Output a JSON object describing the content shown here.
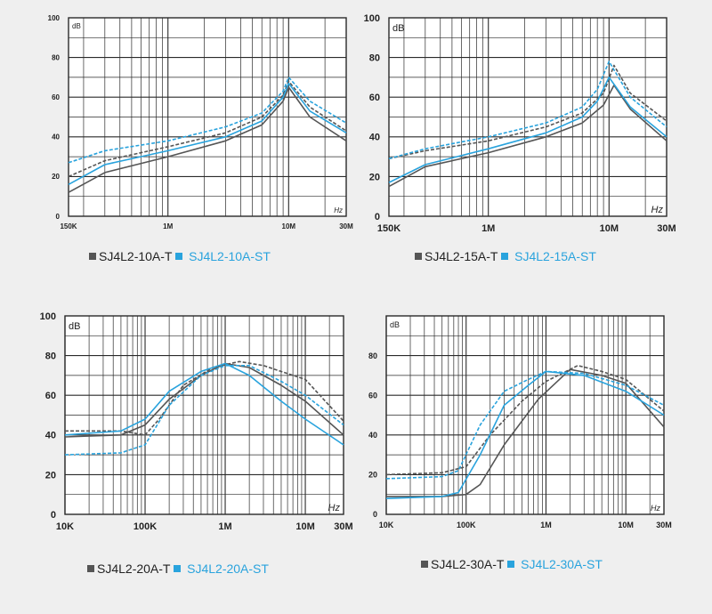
{
  "colors": {
    "background": "#efefef",
    "plot_bg": "#ffffff",
    "grid": "#2a2a2a",
    "series_gray": "#555555",
    "series_blue": "#29a3dd"
  },
  "chart_data": [
    {
      "type": "line",
      "x_scale": "log",
      "xlim": [
        150000,
        30000000
      ],
      "ylim": [
        0,
        100
      ],
      "yticks": [
        0,
        20,
        40,
        60,
        80,
        100
      ],
      "ytick_labels": [
        "0",
        "20",
        "40",
        "60",
        "80",
        "100"
      ],
      "xtick_values": [
        150000,
        1000000,
        10000000,
        30000000
      ],
      "xtick_labels": [
        "150K",
        "1M",
        "10M",
        "30M"
      ],
      "ylabel": "dB",
      "xlabel": "Hz",
      "grid": true,
      "legend": {
        "labels": [
          "SJ4L2-10A-T",
          "SJ4L2-10A-ST"
        ],
        "colors": [
          "#555555",
          "#29a3dd"
        ]
      },
      "series": [
        {
          "name": "SJ4L2-10A-T",
          "color": "#555555",
          "dash": false,
          "x": [
            150000,
            300000,
            1000000,
            3000000,
            6000000,
            9000000,
            10000000,
            15000000,
            30000000
          ],
          "y": [
            12,
            22,
            30,
            38,
            46,
            58,
            65,
            50,
            38
          ]
        },
        {
          "name": "SJ4L2-10A-T",
          "color": "#555555",
          "dash": true,
          "x": [
            150000,
            300000,
            1000000,
            3000000,
            6000000,
            9000000,
            10000000,
            15000000,
            30000000
          ],
          "y": [
            20,
            28,
            35,
            42,
            50,
            61,
            68,
            55,
            43
          ]
        },
        {
          "name": "SJ4L2-10A-ST",
          "color": "#29a3dd",
          "dash": false,
          "x": [
            150000,
            300000,
            1000000,
            3000000,
            6000000,
            9000000,
            10000000,
            15000000,
            30000000
          ],
          "y": [
            16,
            26,
            33,
            40,
            48,
            60,
            67,
            53,
            42
          ]
        },
        {
          "name": "SJ4L2-10A-ST",
          "color": "#29a3dd",
          "dash": true,
          "x": [
            150000,
            300000,
            1000000,
            3000000,
            6000000,
            9000000,
            10000000,
            15000000,
            30000000
          ],
          "y": [
            27,
            33,
            38,
            45,
            52,
            63,
            70,
            58,
            47
          ]
        }
      ]
    },
    {
      "type": "line",
      "x_scale": "log",
      "xlim": [
        150000,
        30000000
      ],
      "ylim": [
        0,
        100
      ],
      "yticks": [
        0,
        20,
        40,
        60,
        80,
        100
      ],
      "ytick_labels": [
        "0",
        "20",
        "40",
        "60",
        "80",
        "100"
      ],
      "xtick_values": [
        150000,
        1000000,
        10000000,
        30000000
      ],
      "xtick_labels": [
        "150K",
        "1M",
        "10M",
        "30M"
      ],
      "ylabel": "dB",
      "xlabel": "Hz",
      "grid": true,
      "legend": {
        "labels": [
          "SJ4L2-15A-T",
          "SJ4L2-15A-ST"
        ],
        "colors": [
          "#555555",
          "#29a3dd"
        ]
      },
      "series": [
        {
          "name": "SJ4L2-15A-T",
          "color": "#555555",
          "dash": false,
          "x": [
            150000,
            300000,
            1000000,
            3000000,
            6000000,
            9000000,
            11000000,
            15000000,
            30000000
          ],
          "y": [
            15,
            25,
            32,
            40,
            47,
            56,
            66,
            54,
            38
          ]
        },
        {
          "name": "SJ4L2-15A-T",
          "color": "#555555",
          "dash": true,
          "x": [
            150000,
            300000,
            1000000,
            3000000,
            6000000,
            9000000,
            11000000,
            15000000,
            30000000
          ],
          "y": [
            29,
            33,
            38,
            45,
            52,
            62,
            76,
            62,
            48
          ]
        },
        {
          "name": "SJ4L2-15A-ST",
          "color": "#29a3dd",
          "dash": false,
          "x": [
            150000,
            300000,
            1000000,
            3000000,
            6000000,
            8000000,
            10000000,
            15000000,
            30000000
          ],
          "y": [
            17,
            26,
            34,
            42,
            50,
            58,
            70,
            55,
            40
          ]
        },
        {
          "name": "SJ4L2-15A-ST",
          "color": "#29a3dd",
          "dash": true,
          "x": [
            150000,
            300000,
            1000000,
            3000000,
            6000000,
            8000000,
            10000000,
            15000000,
            30000000
          ],
          "y": [
            29,
            34,
            40,
            47,
            55,
            64,
            78,
            60,
            45
          ]
        }
      ]
    },
    {
      "type": "line",
      "x_scale": "log",
      "xlim": [
        10000,
        30000000
      ],
      "ylim": [
        0,
        100
      ],
      "yticks": [
        0,
        20,
        40,
        60,
        80,
        100
      ],
      "ytick_labels": [
        "0",
        "20",
        "40",
        "60",
        "80",
        "100"
      ],
      "xtick_values": [
        10000,
        100000,
        1000000,
        10000000,
        30000000
      ],
      "xtick_labels": [
        "10K",
        "100K",
        "1M",
        "10M",
        "30M"
      ],
      "ylabel": "dB",
      "xlabel": "Hz",
      "grid": true,
      "legend": {
        "labels": [
          "SJ4L2-20A-T",
          "SJ4L2-20A-ST"
        ],
        "colors": [
          "#555555",
          "#29a3dd"
        ]
      },
      "series": [
        {
          "name": "SJ4L2-20A-T",
          "color": "#555555",
          "dash": false,
          "x": [
            10000,
            50000,
            100000,
            200000,
            500000,
            1000000,
            2000000,
            5000000,
            10000000,
            30000000
          ],
          "y": [
            39,
            40,
            45,
            58,
            70,
            76,
            74,
            65,
            57,
            40
          ]
        },
        {
          "name": "SJ4L2-20A-T",
          "color": "#555555",
          "dash": true,
          "x": [
            10000,
            50000,
            100000,
            150000,
            300000,
            700000,
            1500000,
            3000000,
            10000000,
            30000000
          ],
          "y": [
            42,
            42,
            40,
            48,
            65,
            74,
            77,
            75,
            68,
            47
          ]
        },
        {
          "name": "SJ4L2-20A-ST",
          "color": "#29a3dd",
          "dash": false,
          "x": [
            10000,
            50000,
            100000,
            200000,
            500000,
            1000000,
            2000000,
            5000000,
            10000000,
            30000000
          ],
          "y": [
            40,
            42,
            48,
            62,
            72,
            76,
            70,
            57,
            48,
            35
          ]
        },
        {
          "name": "SJ4L2-20A-ST",
          "color": "#29a3dd",
          "dash": true,
          "x": [
            10000,
            50000,
            100000,
            200000,
            500000,
            1000000,
            2000000,
            5000000,
            10000000,
            30000000
          ],
          "y": [
            30,
            31,
            35,
            55,
            70,
            75,
            75,
            67,
            60,
            45
          ]
        }
      ]
    },
    {
      "type": "line",
      "x_scale": "log",
      "xlim": [
        10000,
        30000000
      ],
      "ylim": [
        0,
        100
      ],
      "yticks": [
        0,
        20,
        40,
        60,
        80
      ],
      "ytick_labels": [
        "0",
        "20",
        "40",
        "60",
        "80"
      ],
      "xtick_values": [
        10000,
        100000,
        1000000,
        10000000,
        30000000
      ],
      "xtick_labels": [
        "10K",
        "100K",
        "1M",
        "10M",
        "30M"
      ],
      "ylabel": "dB",
      "xlabel": "Hz",
      "grid": true,
      "legend": {
        "labels": [
          "SJ4L2-30A-T",
          "SJ4L2-30A-ST"
        ],
        "colors": [
          "#555555",
          "#29a3dd"
        ]
      },
      "series": [
        {
          "name": "SJ4L2-30A-T",
          "color": "#555555",
          "dash": false,
          "x": [
            10000,
            50000,
            100000,
            150000,
            300000,
            800000,
            2000000,
            5000000,
            10000000,
            30000000
          ],
          "y": [
            9,
            9,
            10,
            15,
            35,
            58,
            73,
            70,
            66,
            44
          ]
        },
        {
          "name": "SJ4L2-30A-T",
          "color": "#555555",
          "dash": true,
          "x": [
            10000,
            50000,
            100000,
            200000,
            500000,
            1000000,
            2500000,
            5000000,
            10000000,
            30000000
          ],
          "y": [
            20,
            21,
            24,
            40,
            57,
            67,
            75,
            72,
            68,
            52
          ]
        },
        {
          "name": "SJ4L2-30A-ST",
          "color": "#29a3dd",
          "dash": false,
          "x": [
            10000,
            50000,
            80000,
            150000,
            300000,
            600000,
            1000000,
            3000000,
            10000000,
            30000000
          ],
          "y": [
            8,
            9,
            11,
            30,
            55,
            65,
            72,
            70,
            62,
            50
          ]
        },
        {
          "name": "SJ4L2-30A-ST",
          "color": "#29a3dd",
          "dash": true,
          "x": [
            10000,
            50000,
            80000,
            150000,
            300000,
            600000,
            1000000,
            3000000,
            10000000,
            30000000
          ],
          "y": [
            18,
            19,
            22,
            45,
            62,
            68,
            72,
            71,
            65,
            55
          ]
        }
      ]
    }
  ]
}
